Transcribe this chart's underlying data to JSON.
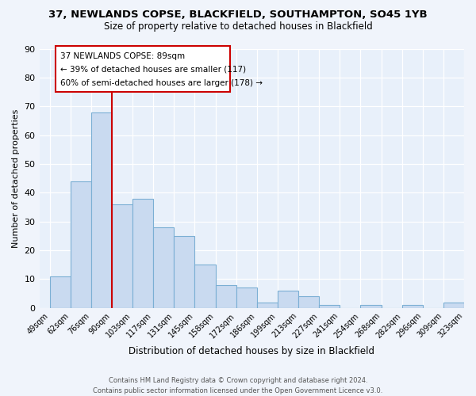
{
  "title1": "37, NEWLANDS COPSE, BLACKFIELD, SOUTHAMPTON, SO45 1YB",
  "title2": "Size of property relative to detached houses in Blackfield",
  "xlabel": "Distribution of detached houses by size in Blackfield",
  "ylabel": "Number of detached properties",
  "categories": [
    "49sqm",
    "62sqm",
    "76sqm",
    "90sqm",
    "103sqm",
    "117sqm",
    "131sqm",
    "145sqm",
    "158sqm",
    "172sqm",
    "186sqm",
    "199sqm",
    "213sqm",
    "227sqm",
    "241sqm",
    "254sqm",
    "268sqm",
    "282sqm",
    "296sqm",
    "309sqm",
    "323sqm"
  ],
  "values": [
    11,
    44,
    68,
    36,
    38,
    28,
    25,
    15,
    8,
    7,
    2,
    6,
    4,
    1,
    0,
    1,
    0,
    1,
    0,
    2
  ],
  "bar_color": "#c9daf0",
  "bar_edge_color": "#7bafd4",
  "vline_x": 3,
  "vline_color": "#cc0000",
  "ylim": [
    0,
    90
  ],
  "yticks": [
    0,
    10,
    20,
    30,
    40,
    50,
    60,
    70,
    80,
    90
  ],
  "annotation_title": "37 NEWLANDS COPSE: 89sqm",
  "annotation_line1": "← 39% of detached houses are smaller (117)",
  "annotation_line2": "60% of semi-detached houses are larger (178) →",
  "annotation_box_color": "#ffffff",
  "annotation_box_edge": "#cc0000",
  "footer1": "Contains HM Land Registry data © Crown copyright and database right 2024.",
  "footer2": "Contains public sector information licensed under the Open Government Licence v3.0.",
  "bg_color": "#f0f4fb",
  "plot_bg_color": "#e8f0fa"
}
